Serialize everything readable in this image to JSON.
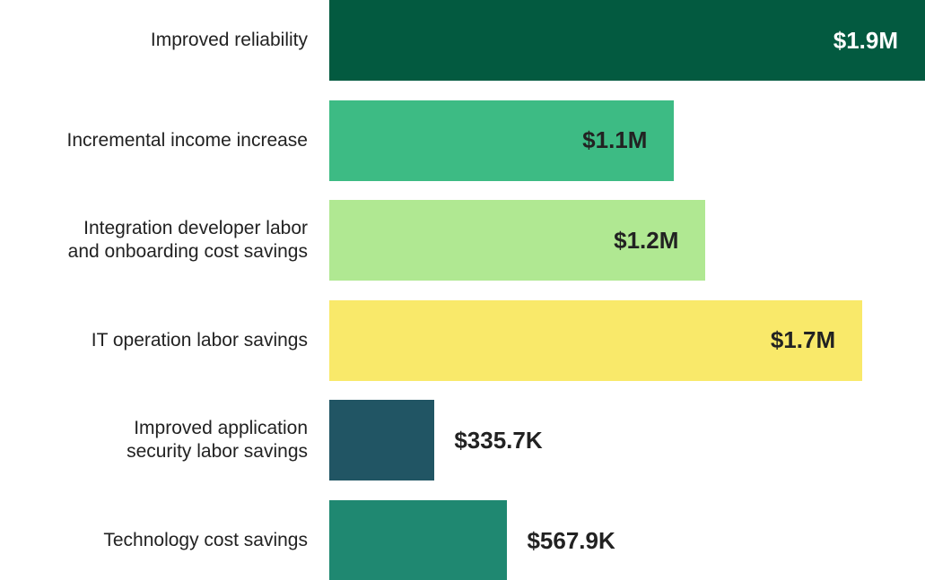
{
  "chart_data": {
    "type": "bar",
    "orientation": "horizontal",
    "categories": [
      "Improved reliability",
      "Incremental income increase",
      "Integration developer labor\nand onboarding cost savings",
      "IT operation labor savings",
      "Improved application\nsecurity labor savings",
      "Technology cost savings"
    ],
    "values": [
      1900000,
      1100000,
      1200000,
      1700000,
      335700,
      567900
    ],
    "value_labels": [
      "$1.9M",
      "$1.1M",
      "$1.2M",
      "$1.7M",
      "$335.7K",
      "$567.9K"
    ],
    "colors": [
      "#035a40",
      "#3dbb84",
      "#b0e892",
      "#f9e96a",
      "#215564",
      "#1f8871"
    ],
    "label_colors": [
      "#ffffff",
      "#222222",
      "#222222",
      "#222222",
      "#222222",
      "#222222"
    ]
  }
}
